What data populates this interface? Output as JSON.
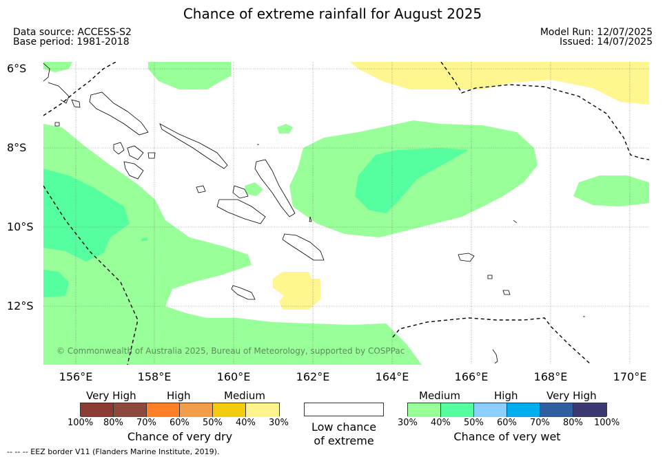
{
  "title": "Chance of extreme rainfall for August 2025",
  "data_source": "Data source: ACCESS-S2",
  "base_period": "Base period: 1981-2018",
  "model_run": "Model Run: 12/07/2025",
  "issued": "Issued: 14/07/2025",
  "lat_labels": [
    "6°S",
    "8°S",
    "10°S",
    "12°S"
  ],
  "lon_labels": [
    "156°E",
    "158°E",
    "160°E",
    "162°E",
    "164°E",
    "166°E",
    "168°E",
    "170°E"
  ],
  "copyright": "© Commonwealth of Australia 2025, Bureau of Meteorology, supported by COSPPac",
  "footer": "-- -- -- EEZ border V11 (Flanders Marine Institute, 2019).",
  "dry_legend": {
    "categories": [
      "Very High",
      "High",
      "Medium"
    ],
    "ticks": [
      "100%",
      "80%",
      "70%",
      "60%",
      "50%",
      "40%",
      "30%"
    ],
    "title": "Chance of very dry",
    "colors": [
      "#8b3a34",
      "#8d4a3c",
      "#ff7f27",
      "#f29d4a",
      "#f2cc0d",
      "#fff38b"
    ]
  },
  "low_legend": {
    "title_line1": "Low chance",
    "title_line2": "of extreme",
    "color": "#ffffff"
  },
  "wet_legend": {
    "categories": [
      "Medium",
      "High",
      "Very High"
    ],
    "ticks": [
      "30%",
      "40%",
      "50%",
      "60%",
      "70%",
      "80%",
      "100%"
    ],
    "title": "Chance of very wet",
    "colors": [
      "#99ff99",
      "#55ffa0",
      "#8ccfff",
      "#00aeef",
      "#2e5fa0",
      "#3b3874"
    ]
  },
  "map_colors": {
    "wet_medium": "#99ff99",
    "wet_medium_high": "#55ffa0",
    "dry_medium": "#fff68f"
  }
}
